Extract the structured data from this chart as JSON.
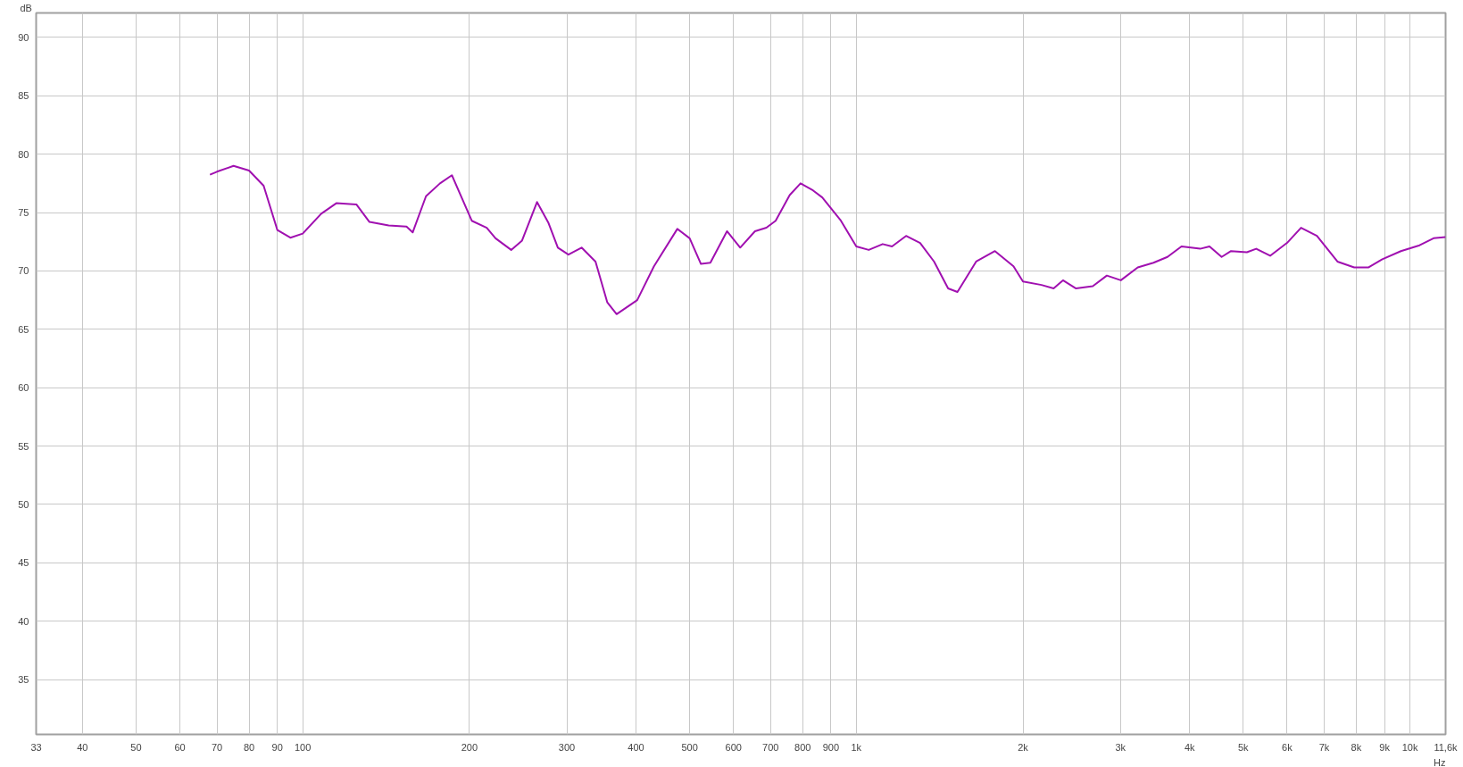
{
  "chart_data": {
    "type": "line",
    "xlabel": "Hz",
    "ylabel": "dB",
    "log": "x",
    "grid": true,
    "line_style": "solid",
    "marker": "none",
    "xlim": [
      33,
      11600
    ],
    "ylim": [
      30.3,
      92.1
    ],
    "xticks": [
      33,
      40,
      50,
      60,
      70,
      80,
      90,
      100,
      200,
      300,
      400,
      500,
      600,
      700,
      800,
      900,
      {
        "value": 1000,
        "label": "1k"
      },
      {
        "value": 2000,
        "label": "2k"
      },
      {
        "value": 3000,
        "label": "3k"
      },
      {
        "value": 4000,
        "label": "4k"
      },
      {
        "value": 5000,
        "label": "5k"
      },
      {
        "value": 6000,
        "label": "6k"
      },
      {
        "value": 7000,
        "label": "7k"
      },
      {
        "value": 8000,
        "label": "8k"
      },
      {
        "value": 9000,
        "label": "9k"
      },
      {
        "value": 10000,
        "label": "10k"
      },
      {
        "value": 11600,
        "label": "11,6k"
      }
    ],
    "yticks": [
      35,
      40,
      45,
      50,
      55,
      60,
      65,
      70,
      75,
      80,
      85,
      90
    ],
    "x": [
      68,
      70,
      75,
      80,
      85,
      90,
      95,
      100,
      108,
      115,
      125,
      132,
      143,
      154,
      158,
      167,
      177,
      186,
      202,
      215,
      223,
      238,
      249,
      265,
      278,
      289,
      302,
      319,
      338,
      355,
      369,
      402,
      431,
      475,
      500,
      524,
      545,
      584,
      617,
      656,
      688,
      715,
      758,
      793,
      835,
      868,
      938,
      1000,
      1053,
      1116,
      1160,
      1230,
      1304,
      1382,
      1465,
      1523,
      1646,
      1780,
      1923,
      2000,
      2160,
      2272,
      2362,
      2494,
      2674,
      2835,
      3005,
      3224,
      3442,
      3648,
      3867,
      4180,
      4345,
      4570,
      4752,
      5076,
      5277,
      5592,
      5998,
      6358,
      6792,
      7398,
      7932,
      8409,
      8914,
      9632,
      10411,
      11034,
      11600
    ],
    "series": [
      {
        "color": "#a010b0",
        "values": [
          78.25,
          78.5,
          79.0,
          78.6,
          77.3,
          73.5,
          72.85,
          73.2,
          74.9,
          75.8,
          75.7,
          74.2,
          73.9,
          73.8,
          73.3,
          76.4,
          77.5,
          78.2,
          74.3,
          73.7,
          72.8,
          71.8,
          72.6,
          75.9,
          74.1,
          72.0,
          71.4,
          72.0,
          70.8,
          67.3,
          66.3,
          67.5,
          70.4,
          73.6,
          72.8,
          70.6,
          70.7,
          73.4,
          72.0,
          73.4,
          73.7,
          74.3,
          76.5,
          77.5,
          76.9,
          76.3,
          74.3,
          72.1,
          71.8,
          72.3,
          72.1,
          73.0,
          72.4,
          70.8,
          68.5,
          68.2,
          70.8,
          71.7,
          70.4,
          69.1,
          68.8,
          68.5,
          69.2,
          68.5,
          68.7,
          69.6,
          69.2,
          70.3,
          70.7,
          71.2,
          72.1,
          71.9,
          72.1,
          71.2,
          71.7,
          71.6,
          71.9,
          71.3,
          72.4,
          73.7,
          73.0,
          70.8,
          70.3,
          70.3,
          71.0,
          71.7,
          72.2,
          72.8,
          72.9
        ]
      }
    ]
  }
}
